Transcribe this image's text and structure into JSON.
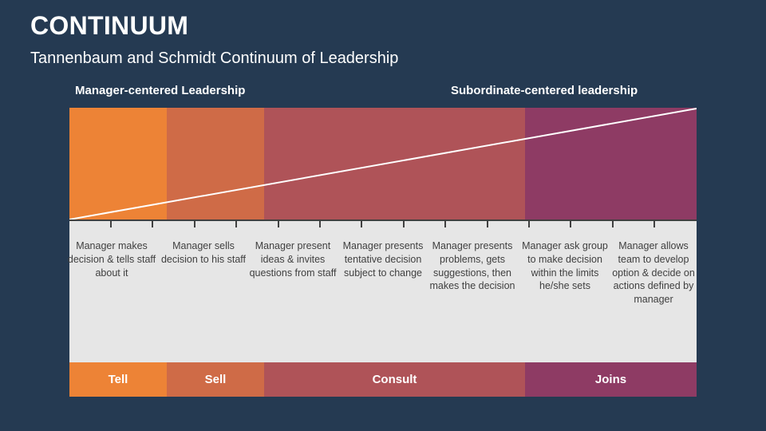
{
  "title": "CONTINUUM",
  "subtitle": "Tannenbaum and Schmidt Continuum of Leadership",
  "left_header": "Manager-centered Leadership",
  "right_header": "Subordinate-centered leadership",
  "colors": {
    "background": "#253A52",
    "tell": "#ED8336",
    "sell": "#CF6B47",
    "consult": "#AF5358",
    "joins": "#8E3B64",
    "panel": "#E6E6E6"
  },
  "stages": [
    {
      "label": "Tell"
    },
    {
      "label": "Sell"
    },
    {
      "label": "Consult"
    },
    {
      "label": "Joins"
    }
  ],
  "behaviors": [
    "Manager makes decision & tells staff about it",
    "Manager sells decision to his staff",
    "Manager present ideas & invites questions from staff",
    "Manager presents tentative decision subject to change",
    "Manager presents problems, gets suggestions, then makes the decision",
    "Manager ask group to make decision within the limits he/she sets",
    "Manager allows team to develop option & decide on actions defined by manager"
  ]
}
